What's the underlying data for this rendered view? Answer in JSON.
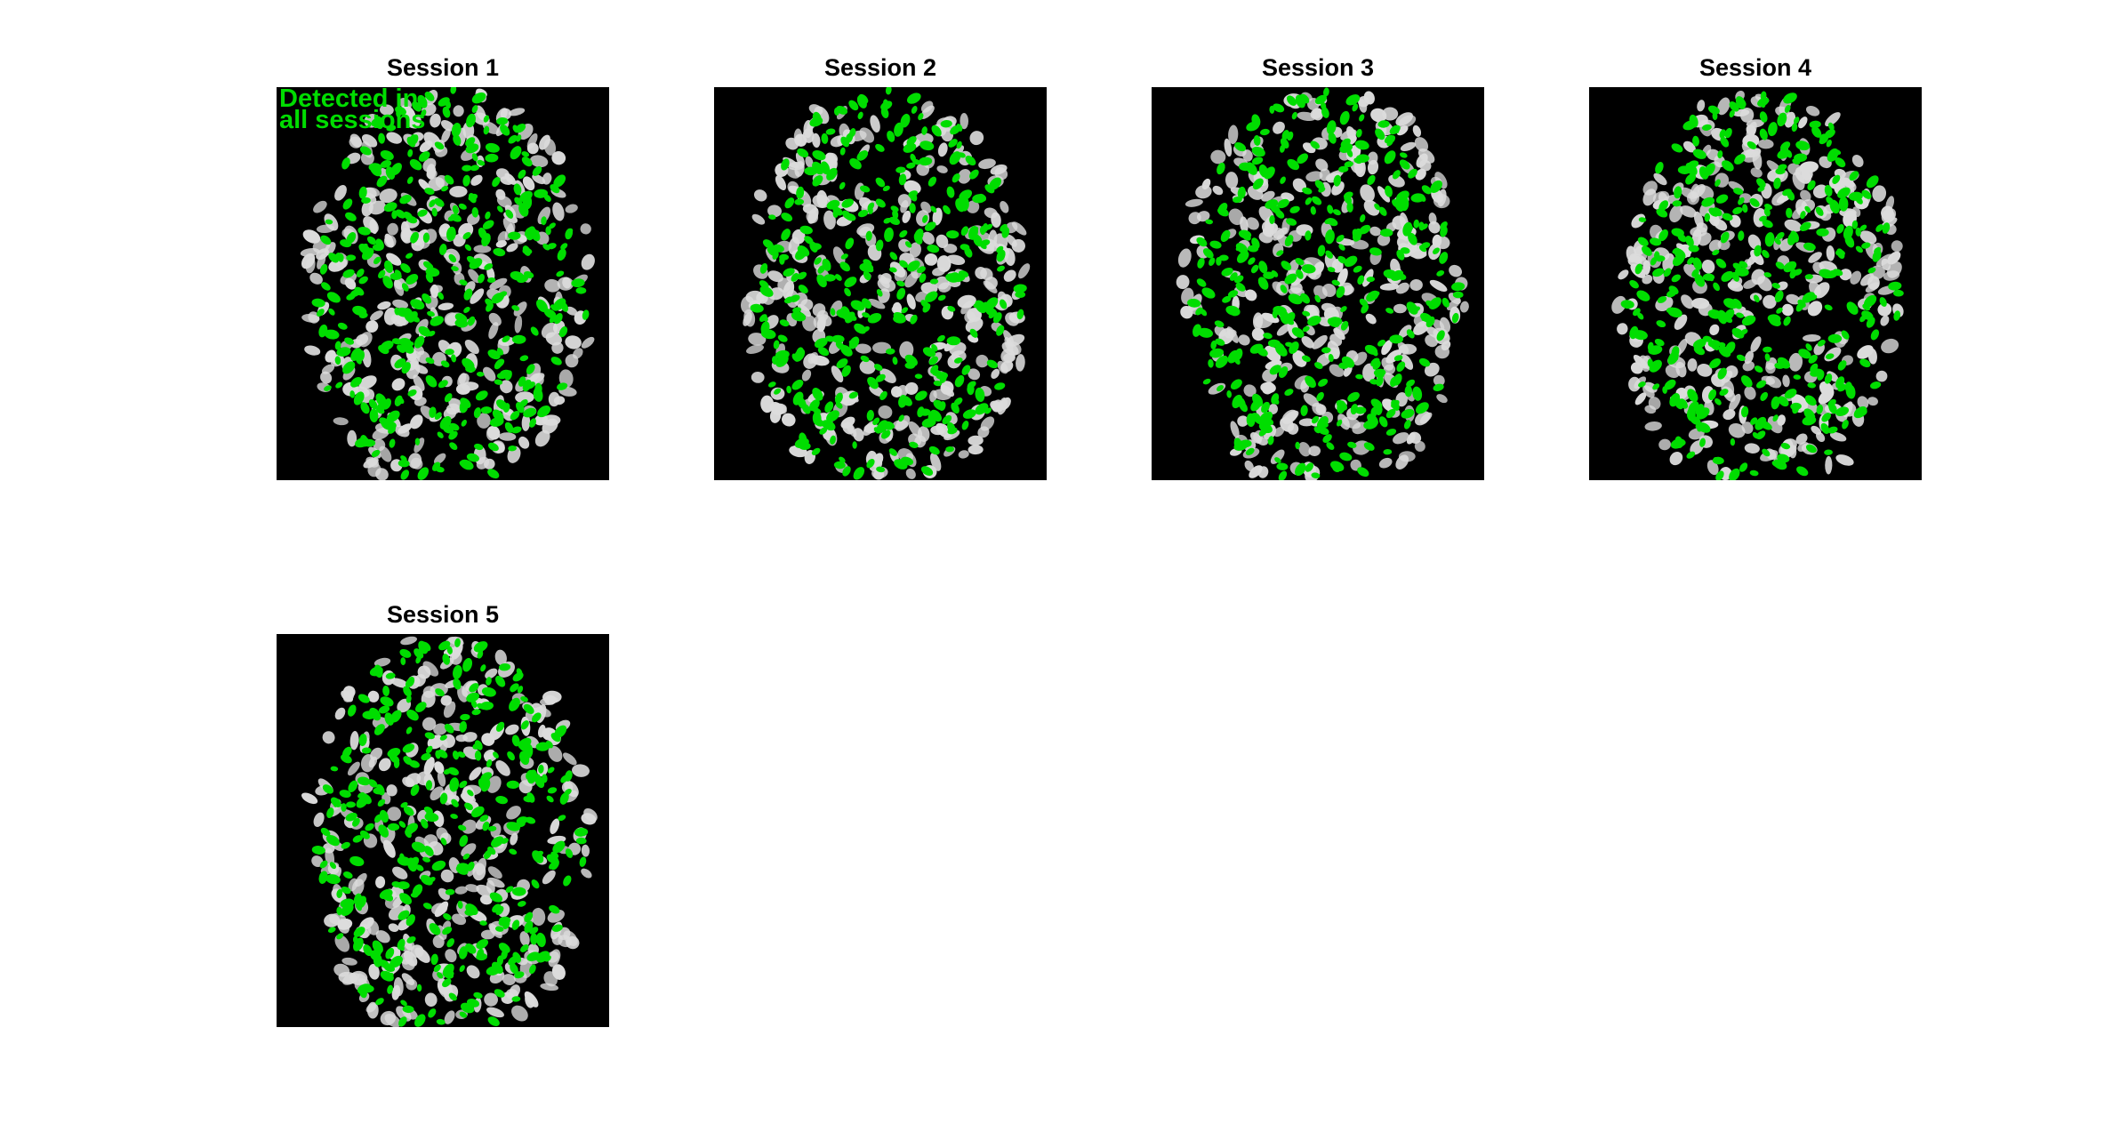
{
  "colors": {
    "background": "#ffffff",
    "image_background": "#000000",
    "detected_all_sessions": "#00dd00",
    "other_cells": "#dcdcdc"
  },
  "panels": [
    {
      "id": "s1",
      "title": "Session 1",
      "overlay": [
        "Detected in",
        "all sessions"
      ]
    },
    {
      "id": "s2",
      "title": "Session 2"
    },
    {
      "id": "s3",
      "title": "Session 3"
    },
    {
      "id": "s4",
      "title": "Session 4"
    },
    {
      "id": "s5",
      "title": "Session 5"
    }
  ]
}
